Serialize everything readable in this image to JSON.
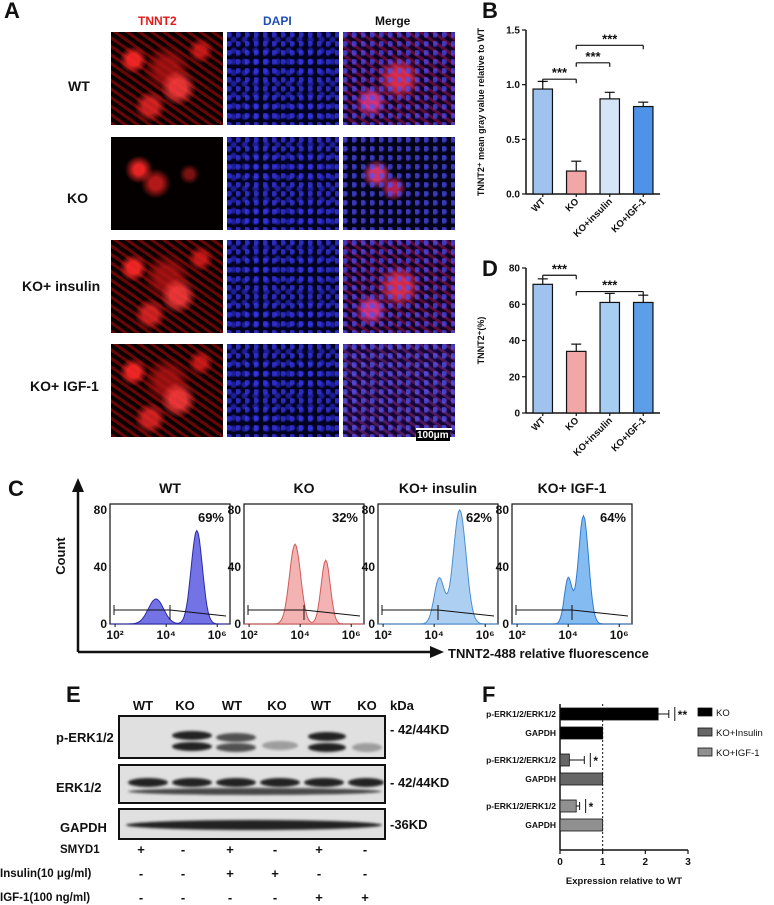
{
  "panelA": {
    "letter": "A",
    "col_headers": {
      "tnnt2": "TNNT2",
      "dapi": "DAPI",
      "merge": "Merge"
    },
    "col_colors": {
      "tnnt2": "#e11b1b",
      "dapi": "#1f4fb4",
      "merge": "#111111"
    },
    "rows": [
      "WT",
      "KO",
      "KO+ insulin",
      "KO+ IGF-1"
    ],
    "scale_bar": "100μm"
  },
  "panelB": {
    "letter": "B",
    "chart_data": {
      "type": "bar",
      "categories": [
        "WT",
        "KO",
        "KO+insulin",
        "KO+IGF-1"
      ],
      "values": [
        0.96,
        0.21,
        0.87,
        0.8
      ],
      "errors": [
        0.07,
        0.09,
        0.06,
        0.04
      ],
      "colors": [
        "#9fc3ee",
        "#f2a6a6",
        "#d5e5f7",
        "#4f93e8"
      ],
      "ylabel": "TNNT2⁺ mean gray value relative to WT",
      "ylim": [
        0,
        1.5
      ],
      "yticks": [
        "0.0",
        "0.5",
        "1.0",
        "1.5"
      ],
      "significance": [
        "***",
        "***",
        "***"
      ]
    }
  },
  "panelD": {
    "letter": "D",
    "chart_data": {
      "type": "bar",
      "categories": [
        "WT",
        "KO",
        "KO+insulin",
        "KO+IGF-1"
      ],
      "values": [
        71,
        34,
        61,
        61
      ],
      "errors": [
        3,
        4,
        5,
        4
      ],
      "colors": [
        "#9fc3ee",
        "#f2a6a6",
        "#a7cdf2",
        "#5c9ee8"
      ],
      "ylabel": "TNNT2⁺(%)",
      "ylim": [
        0,
        80
      ],
      "yticks": [
        "0",
        "20",
        "40",
        "60",
        "80"
      ],
      "significance": [
        "***",
        "***"
      ]
    }
  },
  "panelC": {
    "letter": "C",
    "ylabel": "Count",
    "xlabel": "TNNT2-488  relative fluorescence",
    "chart_data": {
      "type": "area",
      "yticks": [
        "0",
        "40",
        "80"
      ],
      "xticks": [
        "10²",
        "10⁴",
        "10⁶"
      ],
      "histograms": [
        {
          "title": "WT",
          "percent": "69%",
          "fill": "#5b5be0",
          "stroke": "#2a2aa8",
          "peaks": [
            [
              3.6,
              0.22,
              0.3
            ],
            [
              5.2,
              0.82,
              0.22
            ]
          ]
        },
        {
          "title": "KO",
          "percent": "32%",
          "fill": "#f2a6a6",
          "stroke": "#d05a5a",
          "peaks": [
            [
              3.8,
              0.7,
              0.22
            ],
            [
              5.0,
              0.56,
              0.18
            ]
          ]
        },
        {
          "title": "KO+ insulin",
          "percent": "62%",
          "fill": "#9fc8f0",
          "stroke": "#4a8ed0",
          "peaks": [
            [
              4.2,
              0.4,
              0.2
            ],
            [
              5.0,
              1.0,
              0.25
            ]
          ]
        },
        {
          "title": "KO+ IGF-1",
          "percent": "64%",
          "fill": "#6fb0ee",
          "stroke": "#2f7ad0",
          "peaks": [
            [
              4.0,
              0.4,
              0.15
            ],
            [
              4.6,
              0.95,
              0.2
            ]
          ]
        }
      ]
    }
  },
  "panelE": {
    "letter": "E",
    "lane_labels": [
      "WT",
      "KO",
      "WT",
      "KO",
      "WT",
      "KO"
    ],
    "kda": "kDa",
    "blots": [
      {
        "label": "p-ERK1/2",
        "size": "- 42/44KD"
      },
      {
        "label": "ERK1/2",
        "size": "- 42/44KD"
      },
      {
        "label": "GAPDH",
        "size": "-36KD"
      }
    ],
    "treatments": [
      {
        "label": "SMYD1",
        "signs": [
          "+",
          "-",
          "+",
          "-",
          "+",
          "-"
        ]
      },
      {
        "label": "Insulin(10 μg/ml)",
        "signs": [
          "-",
          "-",
          "+",
          "+",
          "-",
          "-"
        ]
      },
      {
        "label": "IGF-1(100 ng/ml)",
        "signs": [
          "-",
          "-",
          "-",
          "-",
          "+",
          "+"
        ]
      }
    ]
  },
  "panelF": {
    "letter": "F",
    "chart_data": {
      "type": "bar",
      "orientation": "horizontal",
      "groups": [
        {
          "name": "KO",
          "color": "#000000",
          "bars": [
            {
              "label": "p-ERK1/2/ERK1/2",
              "value": 2.3,
              "error": 0.25
            },
            {
              "label": "GAPDH",
              "value": 1.0,
              "error": 0
            }
          ],
          "sig": "**"
        },
        {
          "name": "KO+Insulin",
          "color": "#666666",
          "bars": [
            {
              "label": "p-ERK1/2/ERK1/2",
              "value": 0.22,
              "error": 0.35
            },
            {
              "label": "GAPDH",
              "value": 1.0,
              "error": 0
            }
          ],
          "sig": "*"
        },
        {
          "name": "KO+IGF-1",
          "color": "#909090",
          "bars": [
            {
              "label": "p-ERK1/2/ERK1/2",
              "value": 0.38,
              "error": 0.08
            },
            {
              "label": "GAPDH",
              "value": 1.0,
              "error": 0
            }
          ],
          "sig": "*"
        }
      ],
      "xlabel": "Expression relative to WT",
      "xlim": [
        0,
        3
      ],
      "xticks": [
        "0",
        "1",
        "2",
        "3"
      ]
    }
  }
}
